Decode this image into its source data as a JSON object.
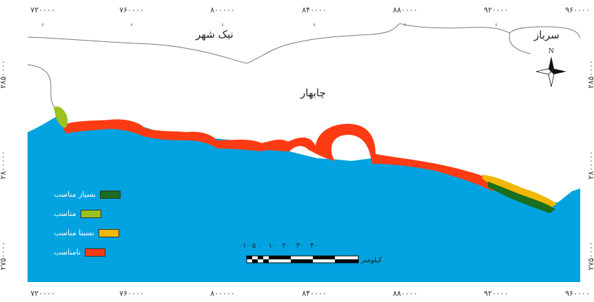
{
  "axes": {
    "x_ticks": [
      "۷۲۰۰۰۰",
      "۷۶۰۰۰۰",
      "۸۰۰۰۰۰",
      "۸۴۰۰۰۰",
      "۸۸۰۰۰۰",
      "۹۲۰۰۰۰",
      "۹۶۰۰۰۰"
    ],
    "y_ticks": [
      "۲۸۵۰۰۰۰",
      "۲۸۰۰۰۰۰",
      "۲۷۵۰۰۰۰"
    ]
  },
  "places": {
    "nikshahr": "نیک شهر",
    "sarbaz": "سرباز",
    "chabahar": "چابهار"
  },
  "north_arrow": {
    "label": "N",
    "icon": "north-arrow-icon"
  },
  "legend": [
    {
      "label": "بسیار مناسب",
      "color": "#1a6e1f"
    },
    {
      "label": "مناسب",
      "color": "#9bc21e"
    },
    {
      "label": "نسبتا مناسب",
      "color": "#f2b705"
    },
    {
      "label": "نامناسب",
      "color": "#ff3b14"
    }
  ],
  "scale_bar": {
    "numbers": "۱۰ ۵ ۰   ۱۰   ۲۰   ۳۰   ۴۰",
    "unit": "کیلومتر"
  },
  "colors": {
    "sea": "#00a3e0",
    "land": "#ffffff",
    "unsuitable": "#ff3b14",
    "suitable": "#9bc21e",
    "very_suitable": "#1a6e1f",
    "moderately_suitable": "#f2b705"
  }
}
